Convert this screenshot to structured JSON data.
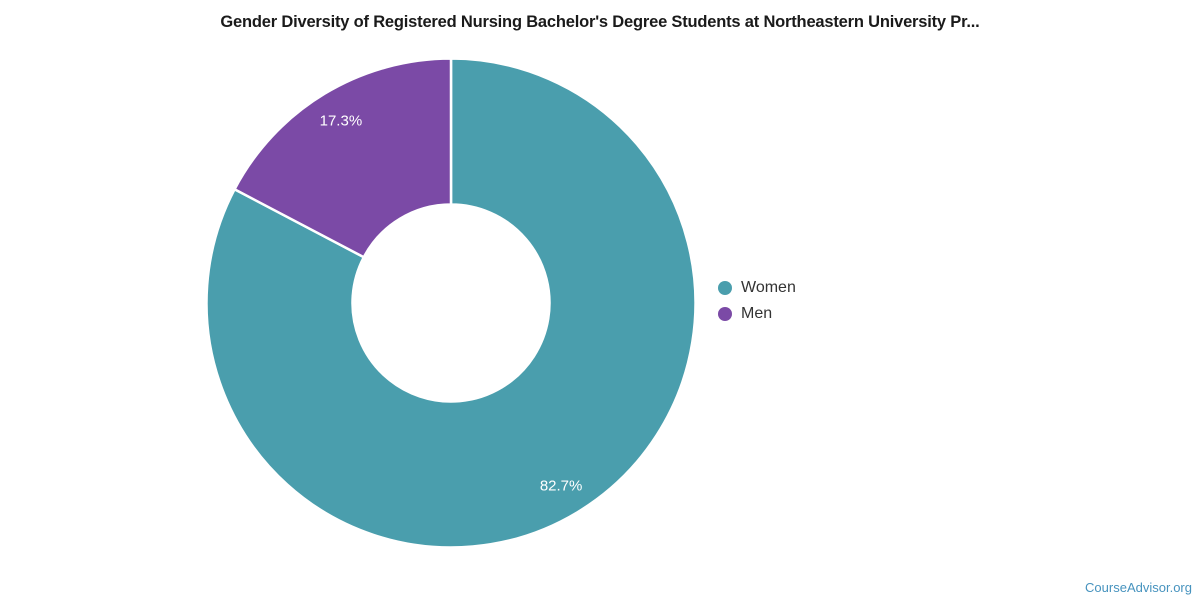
{
  "title": "Gender Diversity of Registered Nursing Bachelor's Degree Students at Northeastern University Pr...",
  "watermark": "CourseAdvisor.org",
  "colors": {
    "women": "#4a9ead",
    "men": "#7b4aa6",
    "slice_border": "#ffffff",
    "label_text": "#ffffff",
    "legend_text": "#333333",
    "watermark_text": "#4793be",
    "title_text": "#1a1a1a"
  },
  "chart_data": {
    "type": "pie",
    "donut": true,
    "hole_ratio": 0.4,
    "start_angle_deg": 0,
    "direction": "clockwise",
    "title": "Gender Diversity of Registered Nursing Bachelor's Degree Students at Northeastern University Pr...",
    "legend_position": "right",
    "data_labels": "percent, white, inside slices",
    "slices": [
      {
        "name": "Women",
        "value": 82.7,
        "label": "82.7%",
        "color": "#4a9ead"
      },
      {
        "name": "Men",
        "value": 17.3,
        "label": "17.3%",
        "color": "#7b4aa6"
      }
    ]
  },
  "legend": {
    "items": [
      {
        "label": "Women"
      },
      {
        "label": "Men"
      }
    ]
  }
}
